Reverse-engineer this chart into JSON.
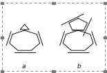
{
  "fig_width": 1.55,
  "fig_height": 1.06,
  "dpi": 100,
  "bg_color": "#ffffff",
  "border_color": "#888888",
  "line_color": "#111111",
  "line_width": 0.7,
  "label_a": "a",
  "label_b": "b",
  "label_fontsize": 6.5,
  "marker_color": "#777777",
  "ring7_n": 7,
  "ring7_r": 0.145,
  "ring7_rot": 1.5707963,
  "cp3_r": 0.048,
  "cp5_r": 0.09
}
